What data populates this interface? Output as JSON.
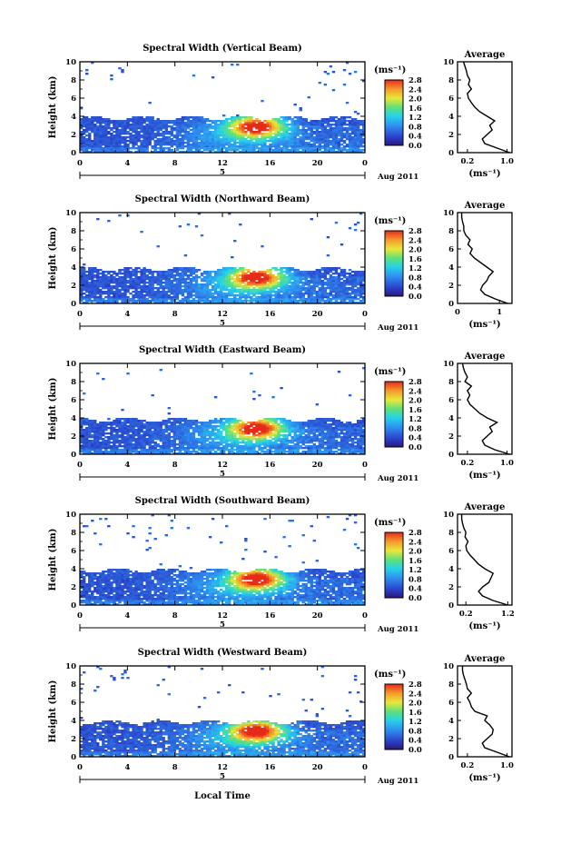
{
  "figure": {
    "xlabel": "Local Time",
    "date_label": "Aug 2011",
    "day_label": "5",
    "cbar_unit": "(ms⁻¹)",
    "avg_title": "Average",
    "avg_xlabel": "(ms⁻¹)",
    "ylabel": "Height (km)"
  },
  "chart_data": [
    {
      "type": "heatmap",
      "title": "Spectral Width (Vertical Beam)",
      "ylabel": "Height (km)",
      "xlabel": "Local Time",
      "x_ticks": [
        "0",
        "4",
        "8",
        "12",
        "16",
        "20",
        "0"
      ],
      "y_ticks": [
        "0",
        "2",
        "4",
        "6",
        "8",
        "10"
      ],
      "xlim": [
        0,
        24
      ],
      "ylim": [
        0,
        10
      ],
      "colorbar": {
        "unit": "(ms⁻¹)",
        "ticks": [
          "2.8",
          "2.4",
          "2.0",
          "1.6",
          "1.2",
          "0.8",
          "0.4",
          "0.0"
        ],
        "range": [
          0,
          2.8
        ]
      },
      "average": {
        "title": "Average",
        "xlabel": "(ms⁻¹)",
        "x_ticks": [
          "0.2",
          "1.0"
        ],
        "xlim": [
          0,
          1.1
        ],
        "heights": [
          0,
          0.5,
          1,
          1.5,
          2,
          2.5,
          3,
          3.5,
          4,
          4.5,
          5,
          5.5,
          6,
          6.5,
          7,
          7.5,
          8,
          8.5,
          9,
          9.5,
          10
        ],
        "values": [
          1.05,
          0.8,
          0.55,
          0.5,
          0.6,
          0.7,
          0.65,
          0.75,
          0.6,
          0.45,
          0.35,
          0.28,
          0.22,
          0.2,
          0.28,
          0.22,
          0.25,
          0.2,
          0.18,
          0.15,
          0.12
        ]
      }
    },
    {
      "type": "heatmap",
      "title": "Spectral Width (Northward Beam)",
      "ylabel": "Height (km)",
      "xlabel": "Local Time",
      "x_ticks": [
        "0",
        "4",
        "8",
        "12",
        "16",
        "20",
        "0"
      ],
      "y_ticks": [
        "0",
        "2",
        "4",
        "6",
        "8",
        "10"
      ],
      "xlim": [
        0,
        24
      ],
      "ylim": [
        0,
        10
      ],
      "colorbar": {
        "unit": "(ms⁻¹)",
        "ticks": [
          "2.8",
          "2.4",
          "2.0",
          "1.6",
          "1.2",
          "0.8",
          "0.4",
          "0.0"
        ],
        "range": [
          0,
          2.8
        ]
      },
      "average": {
        "title": "Average",
        "xlabel": "(ms⁻¹)",
        "x_ticks": [
          "0",
          "1"
        ],
        "xlim": [
          0,
          1.3
        ],
        "heights": [
          0,
          0.5,
          1,
          1.5,
          2,
          2.5,
          3,
          3.5,
          4,
          4.5,
          5,
          5.5,
          6,
          6.5,
          7,
          7.5,
          8,
          8.5,
          9,
          9.5,
          10
        ],
        "values": [
          1.2,
          0.9,
          0.65,
          0.55,
          0.6,
          0.7,
          0.75,
          0.85,
          0.7,
          0.55,
          0.4,
          0.3,
          0.35,
          0.25,
          0.3,
          0.2,
          0.15,
          0.15,
          0.12,
          0.1,
          0.1
        ]
      }
    },
    {
      "type": "heatmap",
      "title": "Spectral Width (Eastward Beam)",
      "ylabel": "Height (km)",
      "xlabel": "Local Time",
      "x_ticks": [
        "0",
        "4",
        "8",
        "12",
        "16",
        "20",
        "0"
      ],
      "y_ticks": [
        "0",
        "2",
        "4",
        "6",
        "8",
        "10"
      ],
      "xlim": [
        0,
        24
      ],
      "ylim": [
        0,
        10
      ],
      "colorbar": {
        "unit": "(ms⁻¹)",
        "ticks": [
          "2.8",
          "2.4",
          "2.0",
          "1.6",
          "1.2",
          "0.8",
          "0.4",
          "0.0"
        ],
        "range": [
          0,
          2.8
        ]
      },
      "average": {
        "title": "Average",
        "xlabel": "(ms⁻¹)",
        "x_ticks": [
          "0.2",
          "1.0"
        ],
        "xlim": [
          0,
          1.1
        ],
        "heights": [
          0,
          0.5,
          1,
          1.5,
          2,
          2.5,
          3,
          3.5,
          4,
          4.5,
          5,
          5.5,
          6,
          6.5,
          7,
          7.5,
          8,
          8.5,
          9,
          9.5,
          10
        ],
        "values": [
          1.05,
          0.75,
          0.55,
          0.5,
          0.6,
          0.7,
          0.65,
          0.8,
          0.6,
          0.45,
          0.35,
          0.25,
          0.2,
          0.25,
          0.2,
          0.28,
          0.15,
          0.2,
          0.15,
          0.12,
          0.1
        ]
      }
    },
    {
      "type": "heatmap",
      "title": "Spectral Width (Southward Beam)",
      "ylabel": "Height (km)",
      "xlabel": "Local Time",
      "x_ticks": [
        "0",
        "4",
        "8",
        "12",
        "16",
        "20",
        "0"
      ],
      "y_ticks": [
        "0",
        "2",
        "4",
        "6",
        "8",
        "10"
      ],
      "xlim": [
        0,
        24
      ],
      "ylim": [
        0,
        10
      ],
      "colorbar": {
        "unit": "(ms⁻¹)",
        "ticks": [
          "2.8",
          "2.4",
          "2.0",
          "1.6",
          "1.2",
          "0.8",
          "0.4",
          "0.0"
        ],
        "range": [
          0,
          2.8
        ]
      },
      "average": {
        "title": "Average",
        "xlabel": "(ms⁻¹)",
        "x_ticks": [
          "0.2",
          "1.2"
        ],
        "xlim": [
          0,
          1.3
        ],
        "heights": [
          0,
          0.5,
          1,
          1.5,
          2,
          2.5,
          3,
          3.5,
          4,
          4.5,
          5,
          5.5,
          6,
          6.5,
          7,
          7.5,
          8,
          8.5,
          9,
          9.5,
          10
        ],
        "values": [
          1.2,
          0.85,
          0.6,
          0.5,
          0.6,
          0.75,
          0.8,
          0.85,
          0.65,
          0.5,
          0.4,
          0.3,
          0.22,
          0.2,
          0.25,
          0.18,
          0.2,
          0.15,
          0.12,
          0.1,
          0.1
        ]
      }
    },
    {
      "type": "heatmap",
      "title": "Spectral Width (Westward Beam)",
      "ylabel": "Height (km)",
      "xlabel": "Local Time",
      "x_ticks": [
        "0",
        "4",
        "8",
        "12",
        "16",
        "20",
        "0"
      ],
      "y_ticks": [
        "0",
        "2",
        "4",
        "6",
        "8",
        "10"
      ],
      "xlim": [
        0,
        24
      ],
      "ylim": [
        0,
        10
      ],
      "colorbar": {
        "unit": "(ms⁻¹)",
        "ticks": [
          "2.8",
          "2.4",
          "2.0",
          "1.6",
          "1.2",
          "0.8",
          "0.4",
          "0.0"
        ],
        "range": [
          0,
          2.8
        ]
      },
      "average": {
        "title": "Average",
        "xlabel": "(ms⁻¹)",
        "x_ticks": [
          "0.2",
          "1.0"
        ],
        "xlim": [
          0,
          1.1
        ],
        "heights": [
          0,
          0.5,
          1,
          1.5,
          2,
          2.5,
          3,
          3.5,
          4,
          4.5,
          5,
          5.5,
          6,
          6.5,
          7,
          7.5,
          8,
          8.5,
          9,
          9.5,
          10
        ],
        "values": [
          1.05,
          0.8,
          0.55,
          0.5,
          0.6,
          0.7,
          0.72,
          0.65,
          0.55,
          0.6,
          0.35,
          0.28,
          0.25,
          0.2,
          0.28,
          0.2,
          0.18,
          0.15,
          0.12,
          0.1,
          0.1
        ]
      }
    }
  ]
}
